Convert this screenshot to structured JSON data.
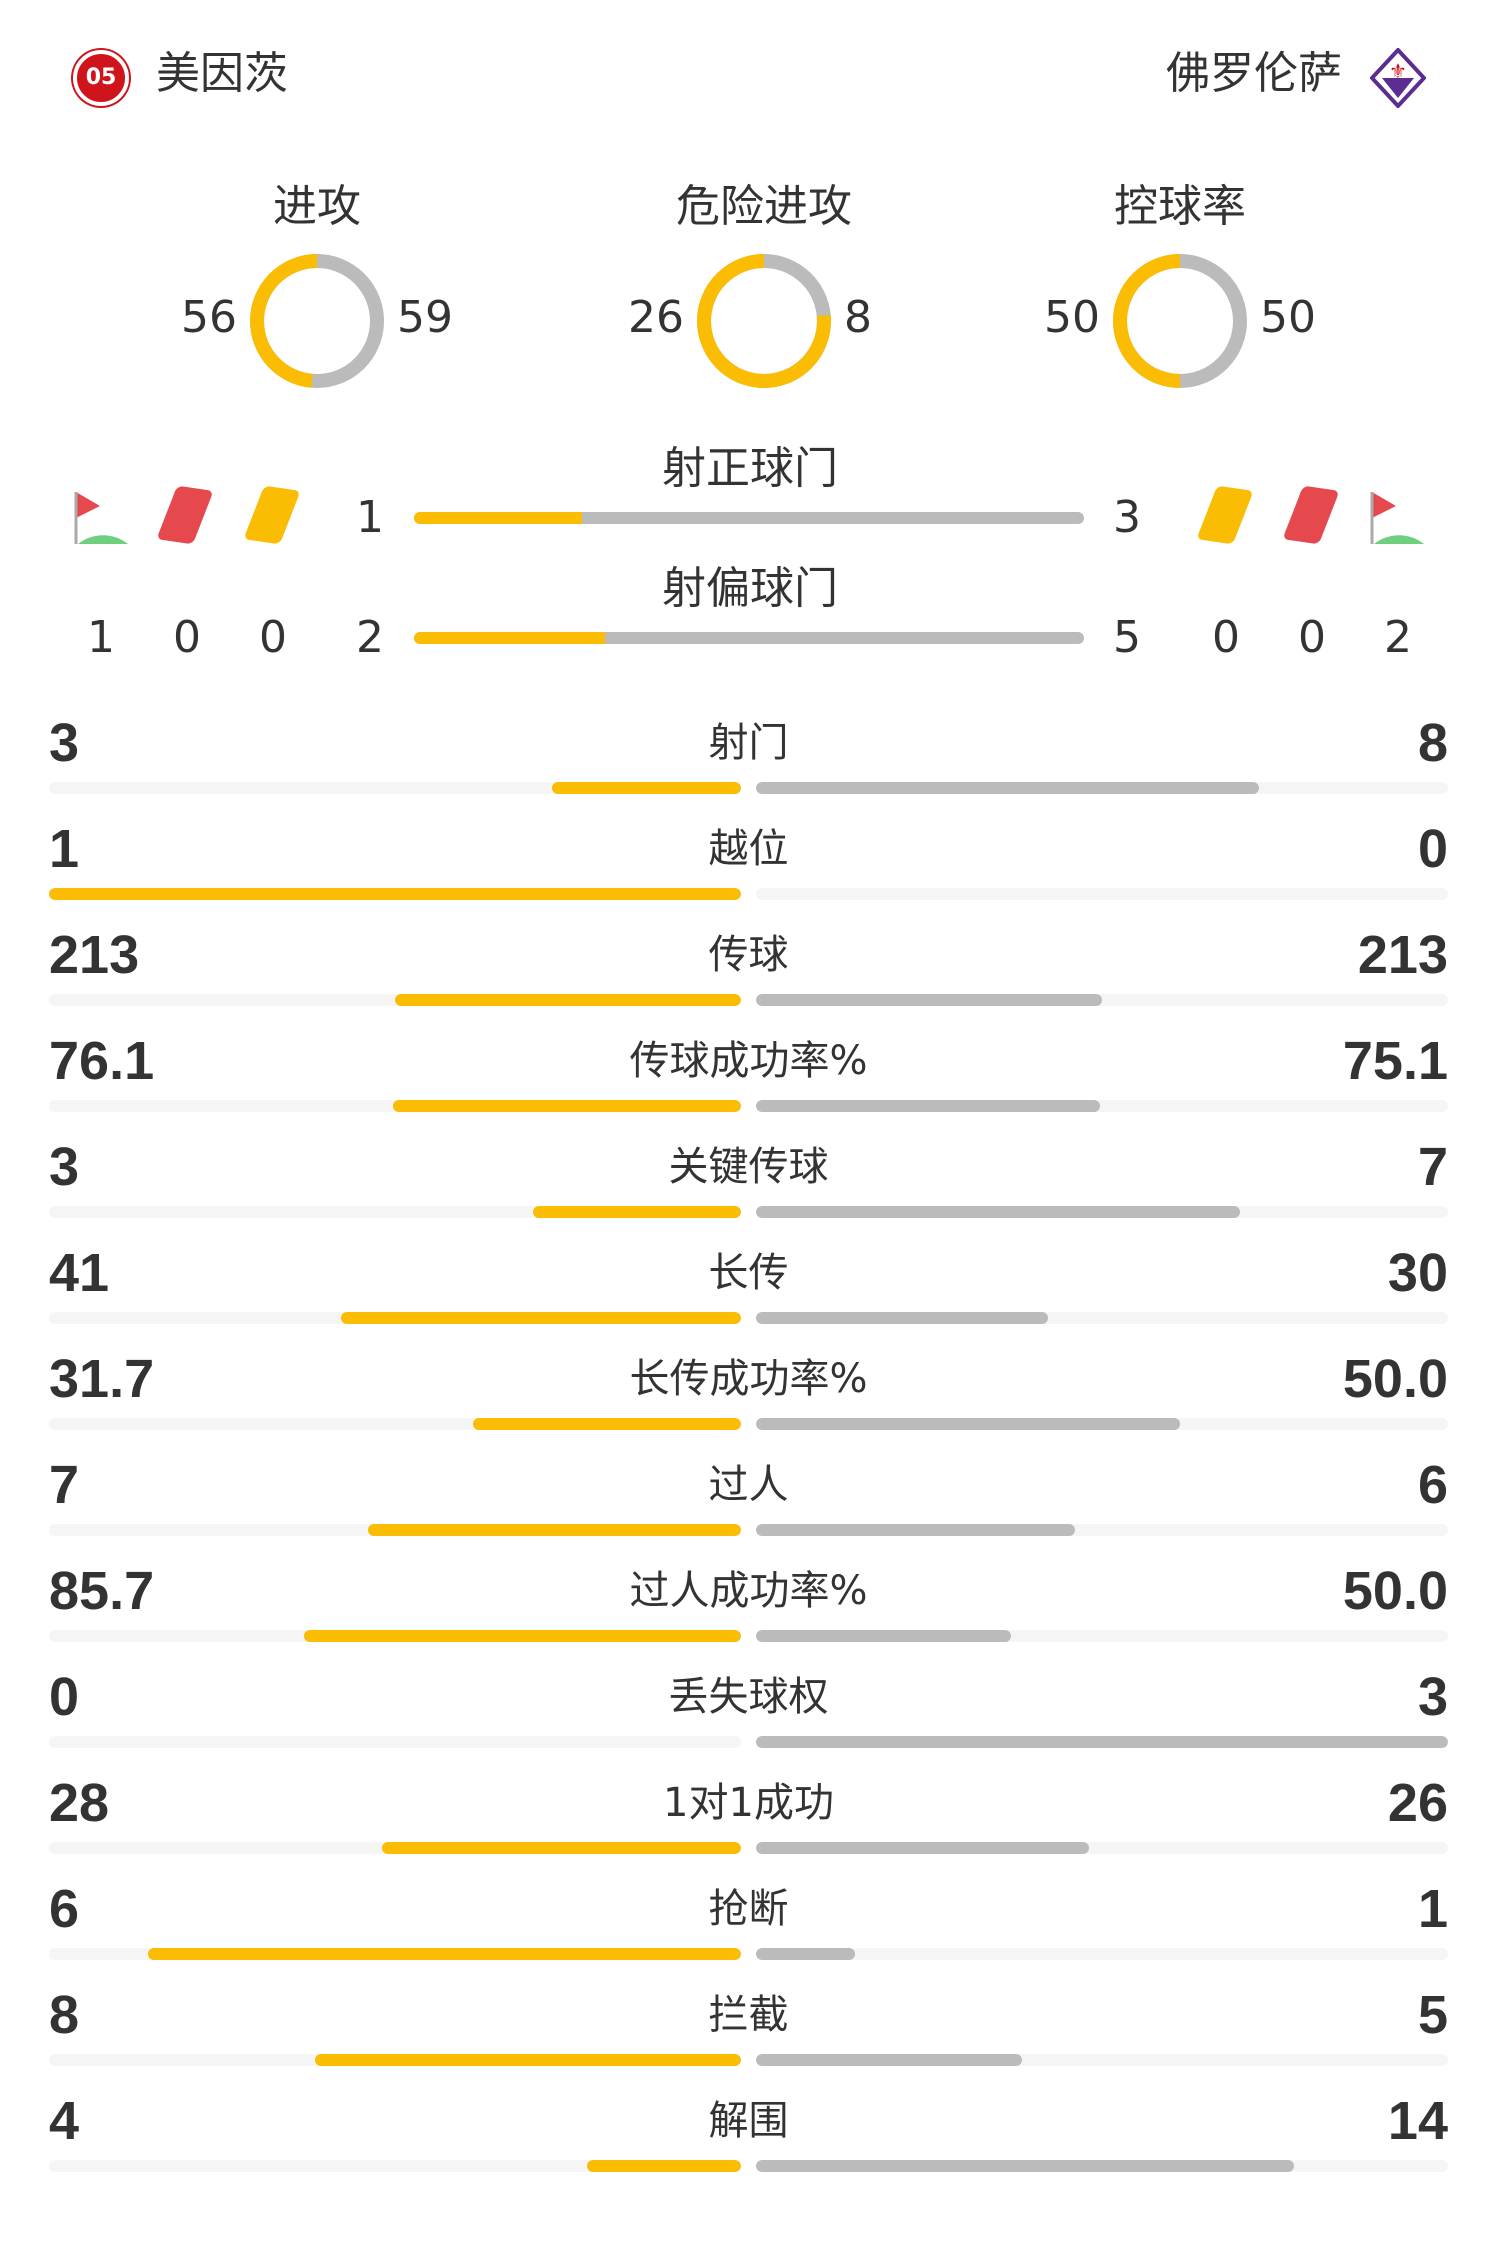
{
  "home": {
    "name": "美因茨",
    "color": "#fbbc04"
  },
  "away": {
    "name": "佛罗伦萨",
    "color": "#bbbbbb"
  },
  "donuts": [
    {
      "label": "进攻",
      "home": 56,
      "away": 59
    },
    {
      "label": "危险进攻",
      "home": 26,
      "away": 8
    },
    {
      "label": "控球率",
      "home": 50,
      "away": 50
    }
  ],
  "shots_on": {
    "label": "射正球门",
    "home": 1,
    "away": 3
  },
  "shots_off": {
    "label": "射偏球门",
    "home": 2,
    "away": 5
  },
  "home_counts": {
    "corners": 1,
    "red_cards": 0,
    "yellow_cards": 0
  },
  "away_counts": {
    "corners": 2,
    "red_cards": 0,
    "yellow_cards": 0
  },
  "stats": [
    {
      "label": "射门",
      "home": "3",
      "away": "8"
    },
    {
      "label": "越位",
      "home": "1",
      "away": "0"
    },
    {
      "label": "传球",
      "home": "213",
      "away": "213"
    },
    {
      "label": "传球成功率%",
      "home": "76.1",
      "away": "75.1"
    },
    {
      "label": "关键传球",
      "home": "3",
      "away": "7"
    },
    {
      "label": "长传",
      "home": "41",
      "away": "30"
    },
    {
      "label": "长传成功率%",
      "home": "31.7",
      "away": "50.0"
    },
    {
      "label": "过人",
      "home": "7",
      "away": "6"
    },
    {
      "label": "过人成功率%",
      "home": "85.7",
      "away": "50.0"
    },
    {
      "label": "丢失球权",
      "home": "0",
      "away": "3"
    },
    {
      "label": "1对1成功",
      "home": "28",
      "away": "26"
    },
    {
      "label": "抢断",
      "home": "6",
      "away": "1"
    },
    {
      "label": "拦截",
      "home": "8",
      "away": "5"
    },
    {
      "label": "解围",
      "home": "4",
      "away": "14"
    }
  ]
}
